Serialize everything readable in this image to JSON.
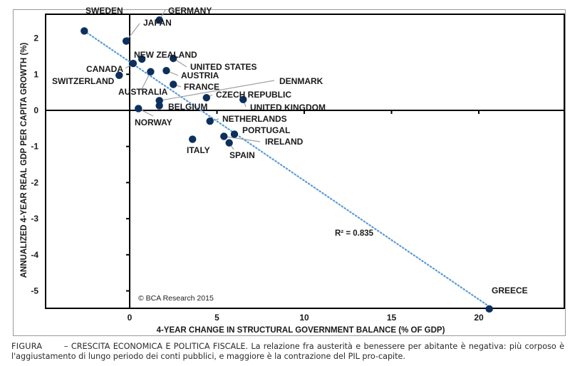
{
  "chart_data": {
    "type": "scatter",
    "title": "",
    "xlabel": "4-YEAR CHANGE IN STRUCTURAL GOVERNMENT BALANCE (% OF GDP)",
    "ylabel": "ANNUALIZED 4-YEAR REAL GDP PER CAPITA GROWTH (%)",
    "xlim": [
      -4.8,
      24
    ],
    "ylim": [
      -6.1,
      2.85
    ],
    "x_ticks": [
      0,
      5,
      10,
      15,
      20
    ],
    "y_ticks": [
      2,
      1,
      0,
      -1,
      -2,
      -3,
      -4,
      -5
    ],
    "x_tick_labels": [
      "0",
      "5",
      "10",
      "15",
      "20"
    ],
    "y_tick_labels": [
      "2",
      "1",
      "0",
      "-1",
      "-2",
      "-3",
      "-4",
      "-5"
    ],
    "grid": false,
    "point_color": "#0d2f5e",
    "trendline": {
      "style": "dotted",
      "color": "#5b9bd5",
      "from": [
        -2.6,
        2.2
      ],
      "to": [
        20.5,
        -5.4
      ],
      "r_squared_label": "R² = 0.835"
    },
    "points": [
      {
        "name": "SWEDEN",
        "x": -2.6,
        "y": 2.2
      },
      {
        "name": "GERMANY",
        "x": 1.7,
        "y": 2.5
      },
      {
        "name": "JAPAN",
        "x": -0.2,
        "y": 1.92
      },
      {
        "name": "NEW ZEALAND",
        "x": 0.7,
        "y": 1.42
      },
      {
        "name": "CANADA",
        "x": 0.2,
        "y": 1.3
      },
      {
        "name": "UNITED STATES",
        "x": 2.5,
        "y": 1.44
      },
      {
        "name": "AUSTRIA",
        "x": 2.1,
        "y": 1.1
      },
      {
        "name": "SWITZERLAND",
        "x": -0.6,
        "y": 0.97
      },
      {
        "name": "AUSTRALIA",
        "x": 1.2,
        "y": 1.07
      },
      {
        "name": "FRANCE",
        "x": 2.5,
        "y": 0.72
      },
      {
        "name": "DENMARK",
        "x": 1.7,
        "y": 0.27
      },
      {
        "name": "BELGIUM",
        "x": 1.7,
        "y": 0.13
      },
      {
        "name": "CZECH REPUBLIC",
        "x": 4.4,
        "y": 0.35
      },
      {
        "name": "UNITED KINGDOM",
        "x": 6.5,
        "y": 0.3
      },
      {
        "name": "NORWAY",
        "x": 0.5,
        "y": 0.05
      },
      {
        "name": "NETHERLANDS",
        "x": 4.6,
        "y": -0.3
      },
      {
        "name": "PORTUGAL",
        "x": 6.0,
        "y": -0.66
      },
      {
        "name": "IRELAND",
        "x": 5.4,
        "y": -0.72
      },
      {
        "name": "SPAIN",
        "x": 5.7,
        "y": -0.9
      },
      {
        "name": "ITALY",
        "x": 3.6,
        "y": -0.8
      },
      {
        "name": "GREECE",
        "x": 20.6,
        "y": -5.5
      }
    ],
    "annotations": {
      "r_squared": "R² = 0.835",
      "credit": "© BCA Research 2015"
    }
  },
  "caption": {
    "label": "FIGURA",
    "text": "– CRESCITA ECONOMICA E POLITICA FISCALE. La relazione fra austerità e benessere per abitante è negativa: più corposo è l'aggiustamento di lungo periodo dei conti pubblici, e maggiore è la contrazione del PIL pro-capite."
  }
}
